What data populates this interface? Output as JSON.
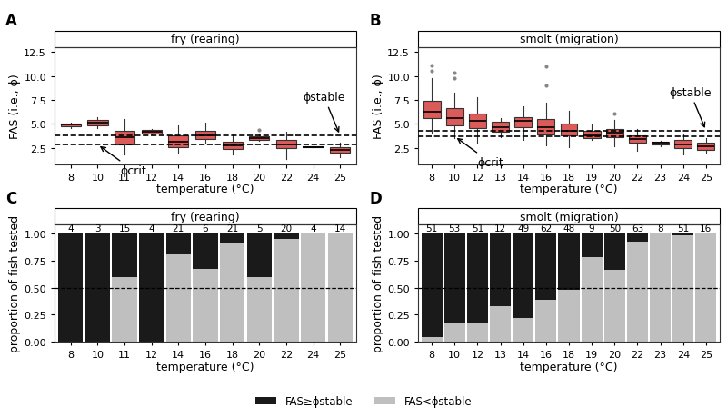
{
  "chart_data": [
    {
      "type": "box",
      "panel": "A",
      "title": "fry (rearing)",
      "x_label": "temperature (°C)",
      "y_label": "FAS (i.e., ϕ)",
      "color": "#db5a5a",
      "categories": [
        "8",
        "10",
        "11",
        "12",
        "14",
        "16",
        "18",
        "20",
        "22",
        "24",
        "25"
      ],
      "boxes": [
        {
          "q1": 4.75,
          "median": 4.9,
          "q3": 5.05,
          "whisker_low": 4.6,
          "whisker_high": 5.1,
          "outliers": []
        },
        {
          "q1": 4.85,
          "median": 5.1,
          "q3": 5.45,
          "whisker_low": 4.6,
          "whisker_high": 5.7,
          "outliers": []
        },
        {
          "q1": 2.9,
          "median": 3.6,
          "q3": 4.3,
          "whisker_low": 1.8,
          "whisker_high": 5.5,
          "outliers": []
        },
        {
          "q1": 4.0,
          "median": 4.2,
          "q3": 4.4,
          "whisker_low": 3.9,
          "whisker_high": 4.5,
          "outliers": []
        },
        {
          "q1": 2.6,
          "median": 3.1,
          "q3": 3.8,
          "whisker_low": 1.9,
          "whisker_high": 4.8,
          "outliers": []
        },
        {
          "q1": 3.4,
          "median": 3.8,
          "q3": 4.3,
          "whisker_low": 3.0,
          "whisker_high": 5.1,
          "outliers": []
        },
        {
          "q1": 2.4,
          "median": 2.8,
          "q3": 3.1,
          "whisker_low": 1.8,
          "whisker_high": 3.9,
          "outliers": []
        },
        {
          "q1": 3.3,
          "median": 3.5,
          "q3": 3.7,
          "whisker_low": 3.2,
          "whisker_high": 4.0,
          "outliers": [
            4.4
          ]
        },
        {
          "q1": 2.5,
          "median": 2.9,
          "q3": 3.3,
          "whisker_low": 1.3,
          "whisker_high": 4.2,
          "outliers": []
        },
        {
          "q1": 2.55,
          "median": 2.6,
          "q3": 2.65,
          "whisker_low": 2.5,
          "whisker_high": 2.7,
          "outliers": []
        },
        {
          "q1": 2.0,
          "median": 2.3,
          "q3": 2.6,
          "whisker_low": 1.5,
          "whisker_high": 3.0,
          "outliers": []
        }
      ],
      "reference_lines": [
        {
          "name": "ϕcrit",
          "value": 2.85
        },
        {
          "name": "ϕstable",
          "value": 3.8
        }
      ],
      "ylim": [
        0.8,
        13.0
      ],
      "yticks": [
        2.5,
        {
          "value": 5,
          "label": "5.0"
        },
        7.5,
        {
          "value": 10,
          "label": "10.0"
        },
        12.5
      ]
    },
    {
      "type": "box",
      "panel": "B",
      "title": "smolt (migration)",
      "x_label": "temperature (°C)",
      "y_label": "FAS (i.e., ϕ)",
      "color": "#db5a5a",
      "categories": [
        "8",
        "10",
        "12",
        "13",
        "14",
        "16",
        "18",
        "19",
        "20",
        "22",
        "23",
        "24",
        "25"
      ],
      "boxes": [
        {
          "q1": 5.6,
          "median": 6.3,
          "q3": 7.4,
          "whisker_low": 4.0,
          "whisker_high": 9.8,
          "outliers": [
            10.5,
            11.1
          ]
        },
        {
          "q1": 4.8,
          "median": 5.6,
          "q3": 6.6,
          "whisker_low": 3.5,
          "whisker_high": 8.3,
          "outliers": [
            9.8,
            10.3
          ]
        },
        {
          "q1": 4.6,
          "median": 5.3,
          "q3": 6.1,
          "whisker_low": 3.0,
          "whisker_high": 7.8,
          "outliers": []
        },
        {
          "q1": 4.2,
          "median": 4.7,
          "q3": 5.2,
          "whisker_low": 3.6,
          "whisker_high": 5.6,
          "outliers": []
        },
        {
          "q1": 4.7,
          "median": 5.3,
          "q3": 5.7,
          "whisker_low": 3.3,
          "whisker_high": 6.8,
          "outliers": []
        },
        {
          "q1": 3.9,
          "median": 4.7,
          "q3": 5.5,
          "whisker_low": 2.8,
          "whisker_high": 7.2,
          "outliers": [
            9.0,
            11.0
          ]
        },
        {
          "q1": 3.8,
          "median": 4.3,
          "q3": 5.0,
          "whisker_low": 2.6,
          "whisker_high": 6.4,
          "outliers": []
        },
        {
          "q1": 3.5,
          "median": 3.8,
          "q3": 4.3,
          "whisker_low": 3.3,
          "whisker_high": 4.9,
          "outliers": []
        },
        {
          "q1": 3.6,
          "median": 4.1,
          "q3": 4.5,
          "whisker_low": 2.7,
          "whisker_high": 5.4,
          "outliers": [
            6.1
          ]
        },
        {
          "q1": 3.0,
          "median": 3.4,
          "q3": 3.8,
          "whisker_low": 2.2,
          "whisker_high": 4.5,
          "outliers": []
        },
        {
          "q1": 2.85,
          "median": 3.0,
          "q3": 3.1,
          "whisker_low": 2.7,
          "whisker_high": 3.2,
          "outliers": []
        },
        {
          "q1": 2.5,
          "median": 2.9,
          "q3": 3.3,
          "whisker_low": 1.8,
          "whisker_high": 4.0,
          "outliers": []
        },
        {
          "q1": 2.3,
          "median": 2.7,
          "q3": 3.0,
          "whisker_low": 2.0,
          "whisker_high": 3.5,
          "outliers": []
        }
      ],
      "reference_lines": [
        {
          "name": "ϕcrit",
          "value": 3.7
        },
        {
          "name": "ϕstable",
          "value": 4.3
        }
      ],
      "ylim": [
        0.8,
        13.0
      ],
      "yticks": [
        2.5,
        {
          "value": 5,
          "label": "5.0"
        },
        7.5,
        {
          "value": 10,
          "label": "10.0"
        },
        12.5
      ]
    },
    {
      "type": "bar",
      "panel": "C",
      "title": "fry (rearing)",
      "x_label": "temperature (°C)",
      "y_label": "proportion of fish tested",
      "stacked": true,
      "categories": [
        "8",
        "10",
        "11",
        "12",
        "14",
        "16",
        "18",
        "20",
        "22",
        "24",
        "25"
      ],
      "n": [
        4,
        3,
        15,
        4,
        21,
        6,
        21,
        5,
        20,
        4,
        14
      ],
      "series": [
        {
          "name": "FAS<ϕstable",
          "color": "#bfbfbf",
          "values": [
            0,
            0,
            0.6,
            0,
            0.81,
            0.67,
            0.905,
            0.6,
            0.95,
            1,
            1
          ]
        },
        {
          "name": "FAS≥ϕstable",
          "color": "#1a1a1a",
          "values": [
            1,
            1,
            0.4,
            1,
            0.19,
            0.33,
            0.095,
            0.4,
            0.05,
            0,
            0
          ]
        }
      ],
      "reference_lines": [
        {
          "value": 0.5
        }
      ],
      "ylim": [
        0,
        1.08
      ],
      "yticks": [
        {
          "value": 0,
          "label": "0.00"
        },
        0.25,
        {
          "value": 0.5,
          "label": "0.50"
        },
        0.75,
        {
          "value": 1,
          "label": "1.00"
        }
      ]
    },
    {
      "type": "bar",
      "panel": "D",
      "title": "smolt (migration)",
      "x_label": "temperature (°C)",
      "y_label": "proportion of fish tested",
      "stacked": true,
      "legend": "lower center",
      "categories": [
        "8",
        "10",
        "12",
        "13",
        "14",
        "16",
        "18",
        "19",
        "20",
        "22",
        "23",
        "24",
        "25"
      ],
      "n": [
        51,
        53,
        51,
        12,
        49,
        62,
        48,
        9,
        50,
        63,
        8,
        51,
        16
      ],
      "series": [
        {
          "name": "FAS<ϕstable",
          "color": "#bfbfbf",
          "values": [
            0.04,
            0.17,
            0.18,
            0.33,
            0.22,
            0.39,
            0.48,
            0.78,
            0.66,
            0.92,
            1,
            0.98,
            1
          ]
        },
        {
          "name": "FAS≥ϕstable",
          "color": "#1a1a1a",
          "values": [
            0.96,
            0.83,
            0.82,
            0.67,
            0.78,
            0.61,
            0.52,
            0.22,
            0.34,
            0.08,
            0,
            0.02,
            0
          ]
        }
      ],
      "reference_lines": [
        {
          "value": 0.5
        }
      ],
      "ylim": [
        0,
        1.08
      ],
      "yticks": [
        {
          "value": 0,
          "label": "0.00"
        },
        0.25,
        {
          "value": 0.5,
          "label": "0.50"
        },
        0.75,
        {
          "value": 1,
          "label": "1.00"
        }
      ]
    }
  ]
}
